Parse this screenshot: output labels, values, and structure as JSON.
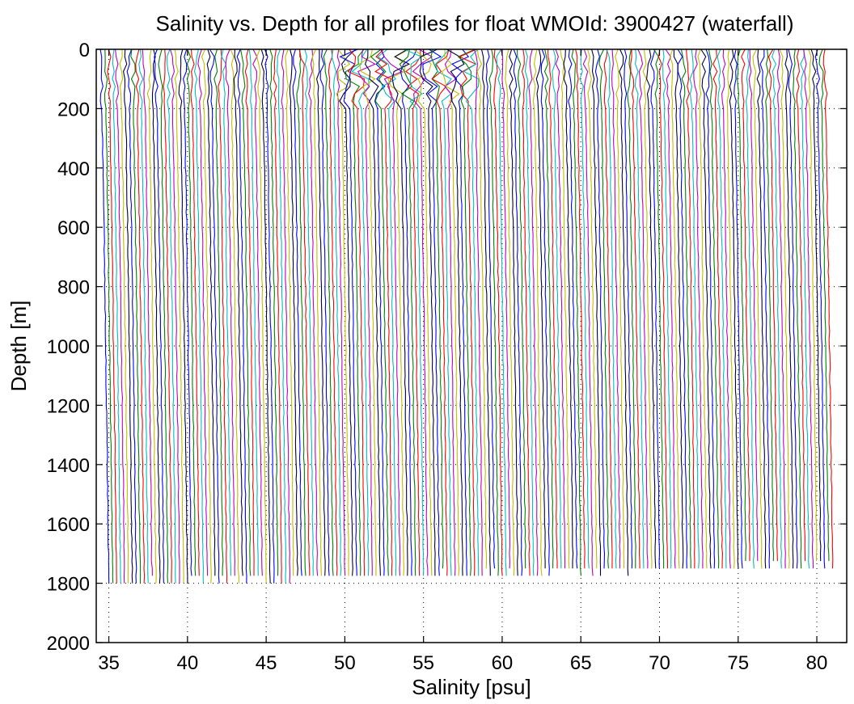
{
  "chart_data": {
    "type": "line",
    "title": "Salinity vs. Depth for all profiles for float WMOId: 3900427 (waterfall)",
    "xlabel": "Salinity [psu]",
    "ylabel": "Depth [m]",
    "xlim": [
      34.2,
      81.9
    ],
    "ylim": [
      0,
      2000
    ],
    "y_reversed": true,
    "grid": true,
    "grid_style": "dotted",
    "x_ticks": [
      "35",
      "40",
      "45",
      "50",
      "55",
      "60",
      "65",
      "70",
      "75",
      "80"
    ],
    "y_ticks": [
      "0",
      "200",
      "400",
      "600",
      "800",
      "1000",
      "1200",
      "1400",
      "1600",
      "1800",
      "2000"
    ],
    "series_colors": [
      "#0000ff",
      "#008000",
      "#ff0000",
      "#00bfbf",
      "#bf00bf",
      "#bfbf00",
      "#000040"
    ],
    "profiles": {
      "count": 185,
      "first_surface_salinity": 34.3,
      "offset_between_profiles": 0.25,
      "deep_salinity_first": 35.0,
      "max_depth_first": 1810,
      "max_depth_last": 1750
    }
  }
}
